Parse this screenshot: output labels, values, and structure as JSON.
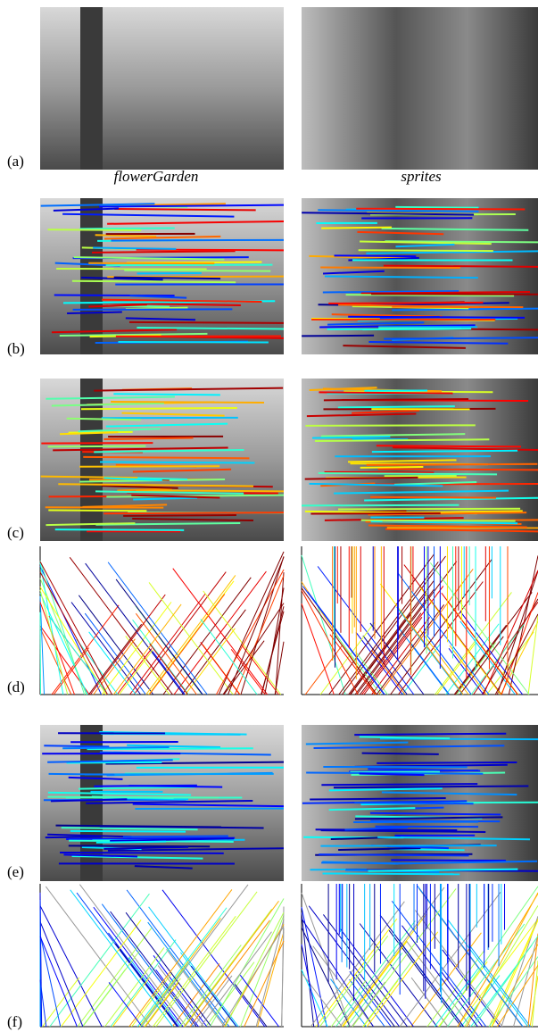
{
  "row_labels": [
    "(a)",
    "(b)",
    "(c)",
    "(d)",
    "(e)",
    "(f)"
  ],
  "column_captions": [
    "flowerGarden",
    "sprites"
  ]
}
